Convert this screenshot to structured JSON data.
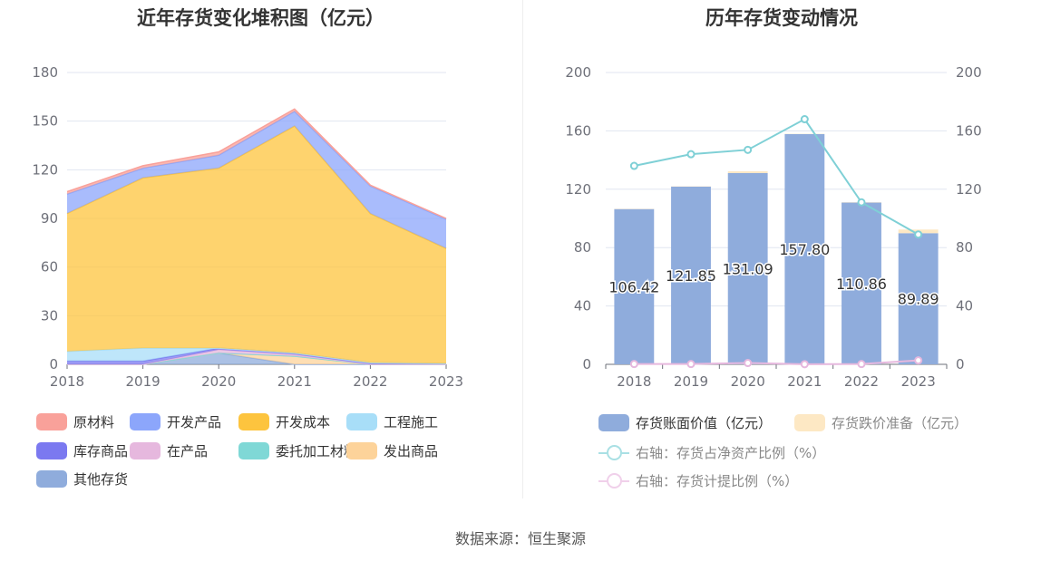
{
  "left_chart": {
    "title": "近年存货变化堆积图（亿元）",
    "legend": [
      {
        "label": "原材料",
        "color": "#f9a19a"
      },
      {
        "label": "开发产品",
        "color": "#8ca6fb"
      },
      {
        "label": "开发成本",
        "color": "#fdc43e"
      },
      {
        "label": "工程施工",
        "color": "#a8def8"
      },
      {
        "label": "库存商品",
        "color": "#7b79f0"
      },
      {
        "label": "在产品",
        "color": "#e6b8de"
      },
      {
        "label": "委托加工材料",
        "color": "#7fd8d6"
      },
      {
        "label": "发出商品",
        "color": "#fdd39a"
      },
      {
        "label": "其他存货",
        "color": "#8facdc"
      }
    ]
  },
  "right_chart": {
    "title": "历年存货变动情况",
    "legend": {
      "bar_book": "存货账面价值（亿元）",
      "bar_impair": "存货跌价准备（亿元）",
      "line_ratio": "右轴：存货占净资产比例（%）",
      "line_provision": "右轴：存货计提比例（%）"
    }
  },
  "source": "数据来源：恒生聚源",
  "chart_data": [
    {
      "type": "area",
      "stacked": true,
      "title": "近年存货变化堆积图（亿元）",
      "x": [
        "2018",
        "2019",
        "2020",
        "2021",
        "2022",
        "2023"
      ],
      "ylim": [
        0,
        180
      ],
      "yticks": [
        0,
        30,
        60,
        90,
        120,
        150,
        180
      ],
      "legend_position": "bottom",
      "series": [
        {
          "name": "其他存货",
          "color": "#8facdc",
          "values": [
            0,
            0,
            7,
            0,
            0,
            0
          ]
        },
        {
          "name": "发出商品",
          "color": "#fdd39a",
          "values": [
            0,
            0,
            0,
            5,
            0,
            0
          ]
        },
        {
          "name": "委托加工材料",
          "color": "#7fd8d6",
          "values": [
            0,
            0,
            0,
            0,
            0,
            0
          ]
        },
        {
          "name": "在产品",
          "color": "#e6b8de",
          "values": [
            0,
            0,
            2,
            1,
            0,
            0
          ]
        },
        {
          "name": "库存商品",
          "color": "#7b79f0",
          "values": [
            2,
            2,
            1,
            1,
            1,
            0.5
          ]
        },
        {
          "name": "工程施工",
          "color": "#a8def8",
          "values": [
            6,
            8,
            0,
            0,
            0,
            0
          ]
        },
        {
          "name": "开发成本",
          "color": "#fdc43e",
          "values": [
            85,
            105,
            111,
            140,
            92,
            71
          ]
        },
        {
          "name": "开发产品",
          "color": "#8ca6fb",
          "values": [
            12,
            6,
            8,
            9,
            17,
            18
          ]
        },
        {
          "name": "原材料",
          "color": "#f9a19a",
          "values": [
            1.5,
            1.5,
            2,
            1.5,
            0.5,
            0.5
          ]
        }
      ]
    },
    {
      "type": "bar",
      "title": "历年存货变动情况",
      "categories": [
        "2018",
        "2019",
        "2020",
        "2021",
        "2022",
        "2023"
      ],
      "ylim": [
        0,
        200
      ],
      "yticks": [
        0,
        40,
        80,
        120,
        160,
        200
      ],
      "y2lim": [
        0,
        200
      ],
      "y2ticks": [
        0,
        40,
        80,
        120,
        160,
        200
      ],
      "legend_position": "bottom",
      "series": [
        {
          "name": "存货账面价值（亿元）",
          "type": "bar",
          "color": "#8facdc",
          "values": [
            106.42,
            121.85,
            131.09,
            157.8,
            110.86,
            89.89
          ],
          "labels": [
            "106.42",
            "121.85",
            "131.09",
            "157.80",
            "110.86",
            "89.89"
          ]
        },
        {
          "name": "存货跌价准备（亿元）",
          "type": "bar",
          "stacked": true,
          "color": "#fde8c4",
          "values": [
            0.2,
            0.2,
            1.2,
            0.2,
            0.2,
            2.5
          ]
        },
        {
          "name": "右轴：存货占净资产比例（%）",
          "type": "line",
          "axis": "right",
          "color": "#7fd0d6",
          "values": [
            136,
            144,
            147,
            168,
            111,
            89
          ]
        },
        {
          "name": "右轴：存货计提比例（%）",
          "type": "line",
          "axis": "right",
          "color": "#e6b8de",
          "values": [
            0.2,
            0.2,
            0.9,
            0.1,
            0.2,
            2.7
          ]
        }
      ]
    }
  ]
}
